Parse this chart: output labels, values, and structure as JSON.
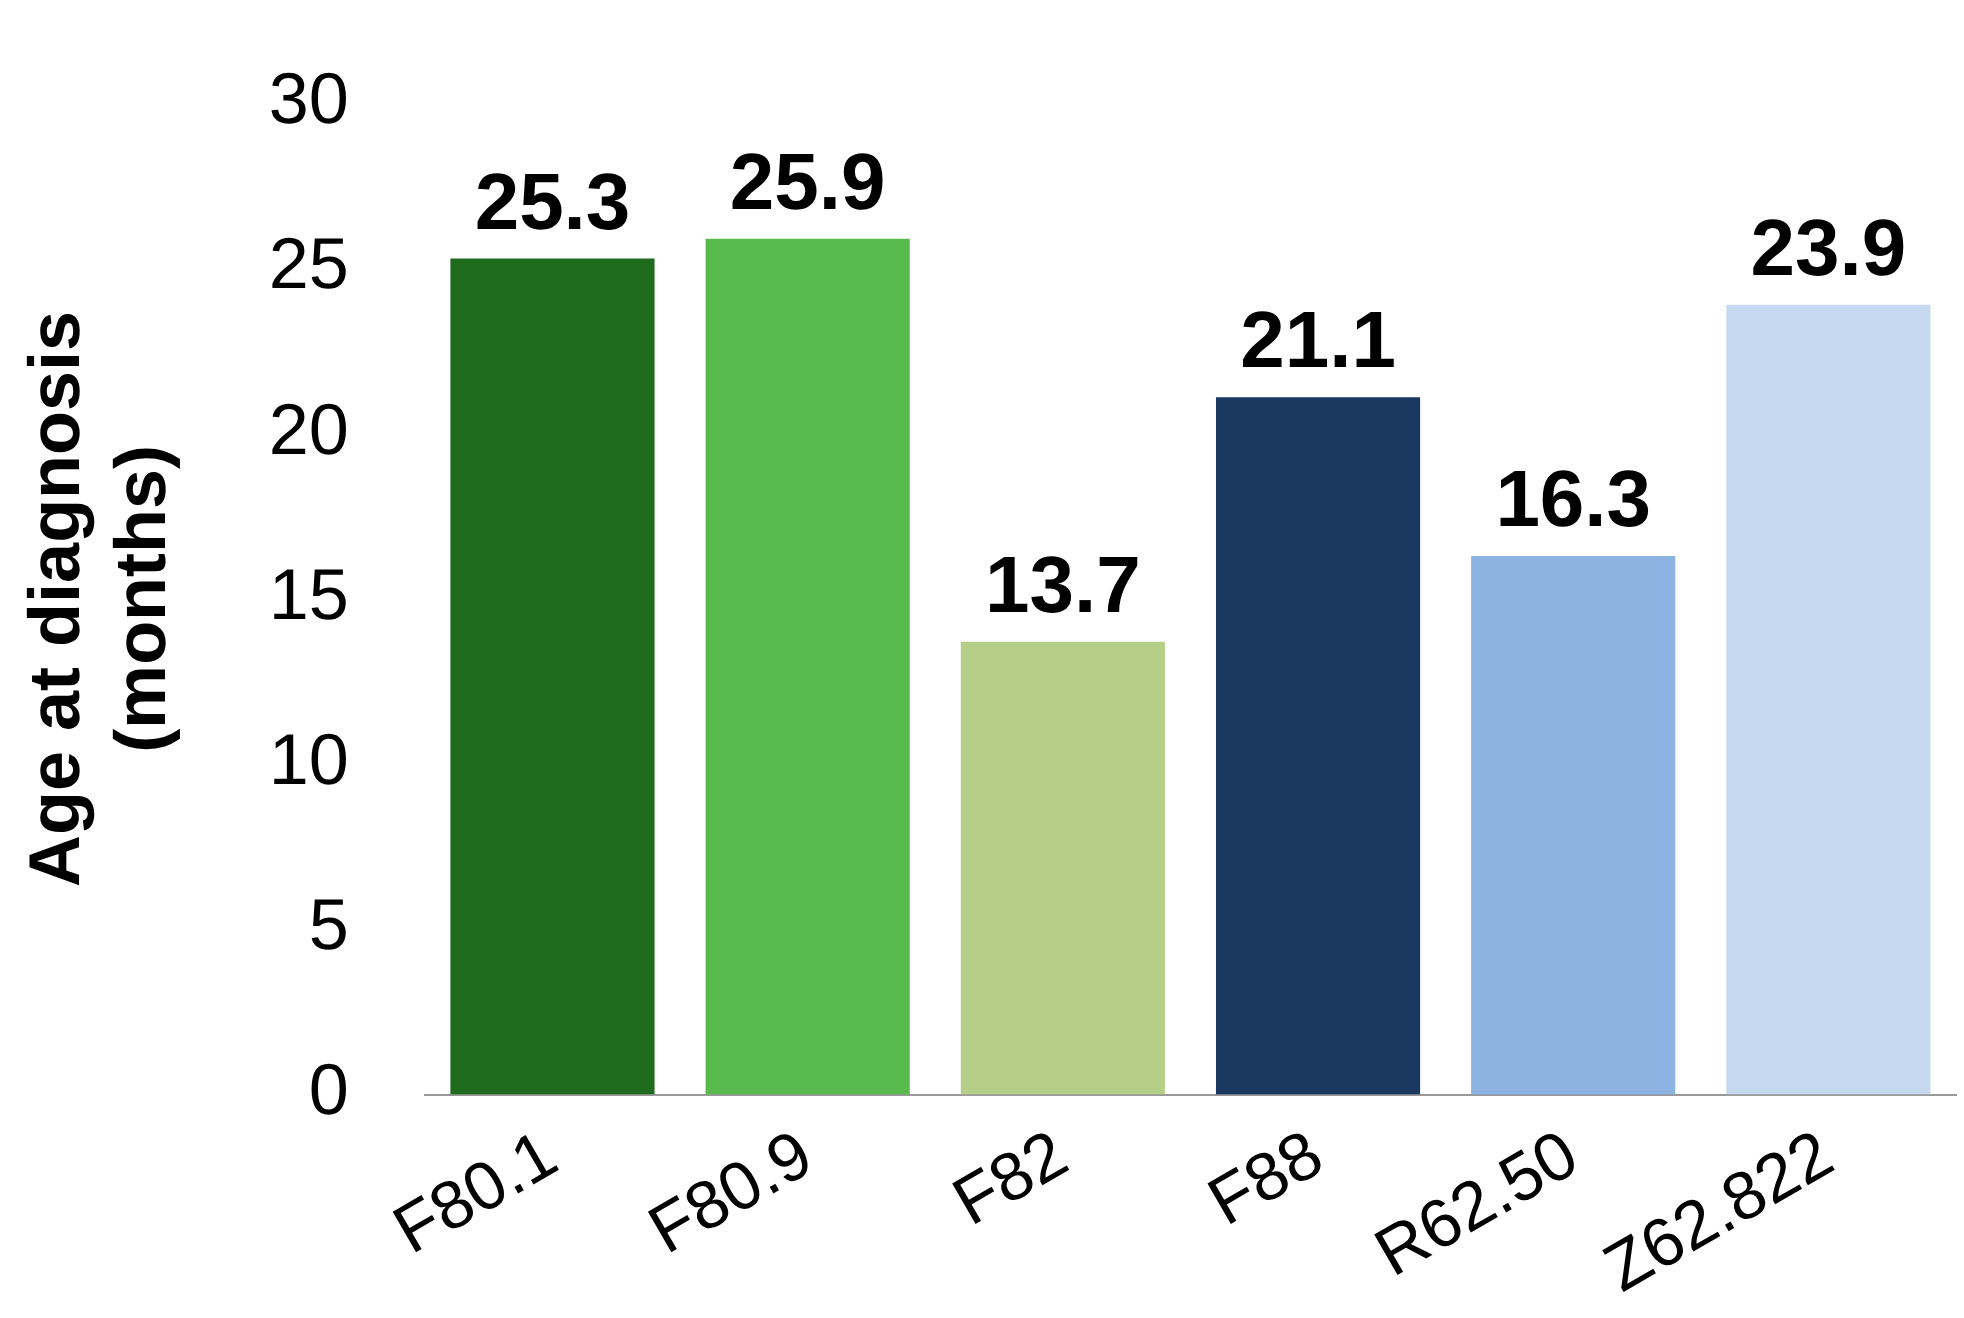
{
  "chart_data": {
    "type": "bar",
    "ylabel": [
      "Age at diagnosis",
      "(months)"
    ],
    "categories": [
      "F80.1",
      "F80.9",
      "F82",
      "F88",
      "R62.50",
      "Z62.822"
    ],
    "values": [
      25.3,
      25.9,
      13.7,
      21.1,
      16.3,
      23.9
    ],
    "colors": [
      "#1e6b1e",
      "#58b94c",
      "#b6cf88",
      "#1a385f",
      "#8cb3e2",
      "#c6d9f0"
    ],
    "ylim": [
      0,
      30
    ],
    "yticks": [
      0,
      5,
      10,
      15,
      20,
      25,
      30
    ],
    "grid": false,
    "data_labels": true
  }
}
